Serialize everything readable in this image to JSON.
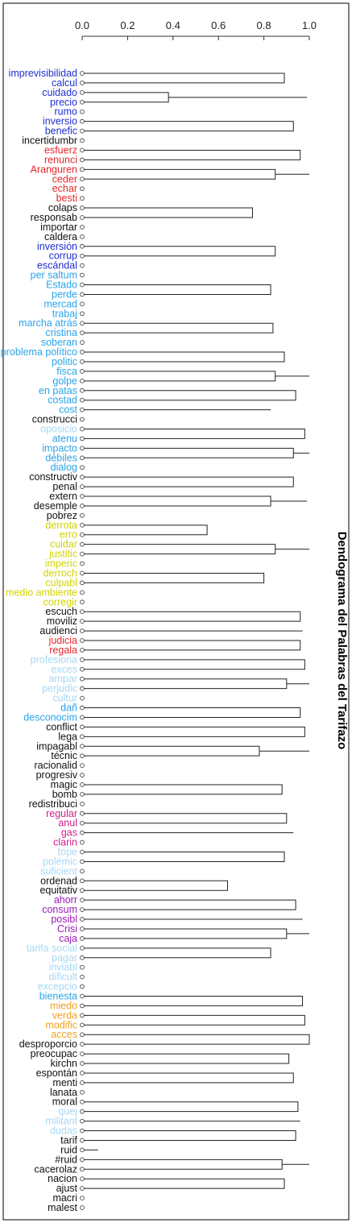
{
  "chart_data": {
    "type": "dendrogram",
    "title": "Dendograma del Palabras del Tarifazo",
    "xlim": [
      0,
      1
    ],
    "x_ticks": [
      "0.0",
      "0.2",
      "0.4",
      "0.6",
      "0.8",
      "1.0"
    ],
    "x_tick_values": [
      0,
      0.2,
      0.4,
      0.6,
      0.8,
      1.0
    ],
    "label_colors": {
      "blue": "#1f2fd0",
      "black": "#111111",
      "red": "#e8262a",
      "light_blue": "#2aa4e8",
      "pale_blue": "#a8d8f4",
      "yellow": "#d2d400",
      "magenta": "#d0208e",
      "purple": "#9a1ab8",
      "orange": "#f0a21e"
    },
    "leaves": [
      {
        "label": "imprevisibilidad",
        "color": "blue"
      },
      {
        "label": "calcul",
        "color": "blue"
      },
      {
        "label": "cuidado",
        "color": "blue"
      },
      {
        "label": "precio",
        "color": "blue"
      },
      {
        "label": "rumo",
        "color": "blue"
      },
      {
        "label": "inversio",
        "color": "blue"
      },
      {
        "label": "benefic",
        "color": "blue"
      },
      {
        "label": "incertidumbr",
        "color": "black"
      },
      {
        "label": "esfuerz",
        "color": "red"
      },
      {
        "label": "renunci",
        "color": "red"
      },
      {
        "label": "Aranguren",
        "color": "red"
      },
      {
        "label": "ceder",
        "color": "red"
      },
      {
        "label": "echar",
        "color": "red"
      },
      {
        "label": "besti",
        "color": "red"
      },
      {
        "label": "colaps",
        "color": "black"
      },
      {
        "label": "responsab",
        "color": "black"
      },
      {
        "label": "importar",
        "color": "black"
      },
      {
        "label": "caldera",
        "color": "black"
      },
      {
        "label": "inversión",
        "color": "blue"
      },
      {
        "label": "corrup",
        "color": "blue"
      },
      {
        "label": "escándal",
        "color": "blue"
      },
      {
        "label": "per saltum",
        "color": "light_blue"
      },
      {
        "label": "Estado",
        "color": "light_blue"
      },
      {
        "label": "perde",
        "color": "light_blue"
      },
      {
        "label": "mercad",
        "color": "light_blue"
      },
      {
        "label": "trabaj",
        "color": "light_blue"
      },
      {
        "label": "marcha atrás",
        "color": "light_blue"
      },
      {
        "label": "cristina",
        "color": "light_blue"
      },
      {
        "label": "soberan",
        "color": "light_blue"
      },
      {
        "label": "problema político",
        "color": "light_blue"
      },
      {
        "label": "politic",
        "color": "light_blue"
      },
      {
        "label": "fisca",
        "color": "light_blue"
      },
      {
        "label": "golpe",
        "color": "light_blue"
      },
      {
        "label": "en patas",
        "color": "light_blue"
      },
      {
        "label": "costad",
        "color": "light_blue"
      },
      {
        "label": "cost",
        "color": "light_blue"
      },
      {
        "label": "construcci",
        "color": "black"
      },
      {
        "label": "oposicio",
        "color": "pale_blue"
      },
      {
        "label": "atenu",
        "color": "light_blue"
      },
      {
        "label": "impacto",
        "color": "light_blue"
      },
      {
        "label": "débiles",
        "color": "light_blue"
      },
      {
        "label": "dialog",
        "color": "light_blue"
      },
      {
        "label": "constructiv",
        "color": "black"
      },
      {
        "label": "penal",
        "color": "black"
      },
      {
        "label": "extern",
        "color": "black"
      },
      {
        "label": "desemple",
        "color": "black"
      },
      {
        "label": "pobrez",
        "color": "black"
      },
      {
        "label": "derrota",
        "color": "yellow"
      },
      {
        "label": "erro",
        "color": "yellow"
      },
      {
        "label": "cuidar",
        "color": "yellow"
      },
      {
        "label": "justitic",
        "color": "yellow"
      },
      {
        "label": "imperic",
        "color": "yellow"
      },
      {
        "label": "derroch",
        "color": "yellow"
      },
      {
        "label": "culpabl",
        "color": "yellow"
      },
      {
        "label": "medio ambiente",
        "color": "yellow"
      },
      {
        "label": "corregir",
        "color": "yellow"
      },
      {
        "label": "escuch",
        "color": "black"
      },
      {
        "label": "moviliz",
        "color": "black"
      },
      {
        "label": "audienci",
        "color": "black"
      },
      {
        "label": "judicia",
        "color": "red"
      },
      {
        "label": "regala",
        "color": "red"
      },
      {
        "label": "profesiona",
        "color": "pale_blue"
      },
      {
        "label": "exces",
        "color": "pale_blue"
      },
      {
        "label": "ampar",
        "color": "pale_blue"
      },
      {
        "label": "perjudic",
        "color": "pale_blue"
      },
      {
        "label": "cultur",
        "color": "pale_blue"
      },
      {
        "label": "dañ",
        "color": "light_blue"
      },
      {
        "label": "desconocim",
        "color": "light_blue"
      },
      {
        "label": "conflict",
        "color": "black"
      },
      {
        "label": "lega",
        "color": "black"
      },
      {
        "label": "impagabl",
        "color": "black"
      },
      {
        "label": "técnic",
        "color": "black"
      },
      {
        "label": "racionalid",
        "color": "black"
      },
      {
        "label": "progresiv",
        "color": "black"
      },
      {
        "label": "magic",
        "color": "black"
      },
      {
        "label": "bomb",
        "color": "black"
      },
      {
        "label": "redistribuci",
        "color": "black"
      },
      {
        "label": "regular",
        "color": "magenta"
      },
      {
        "label": "anul",
        "color": "magenta"
      },
      {
        "label": "gas",
        "color": "magenta"
      },
      {
        "label": "clarin",
        "color": "magenta"
      },
      {
        "label": "tope",
        "color": "pale_blue"
      },
      {
        "label": "polémic",
        "color": "pale_blue"
      },
      {
        "label": "suficient",
        "color": "pale_blue"
      },
      {
        "label": "ordenad",
        "color": "black"
      },
      {
        "label": "equitativ",
        "color": "black"
      },
      {
        "label": "ahorr",
        "color": "purple"
      },
      {
        "label": "consum",
        "color": "purple"
      },
      {
        "label": "posibl",
        "color": "purple"
      },
      {
        "label": "Crisi",
        "color": "purple"
      },
      {
        "label": "caja",
        "color": "purple"
      },
      {
        "label": "tarifa social",
        "color": "pale_blue"
      },
      {
        "label": "pagar",
        "color": "pale_blue"
      },
      {
        "label": "inviabl",
        "color": "pale_blue"
      },
      {
        "label": "dificult",
        "color": "pale_blue"
      },
      {
        "label": "excepcio",
        "color": "pale_blue"
      },
      {
        "label": "bienesta",
        "color": "light_blue"
      },
      {
        "label": "miedo",
        "color": "orange"
      },
      {
        "label": "verda",
        "color": "orange"
      },
      {
        "label": "modific",
        "color": "orange"
      },
      {
        "label": "acces",
        "color": "orange"
      },
      {
        "label": "desproporcio",
        "color": "black"
      },
      {
        "label": "preocupac",
        "color": "black"
      },
      {
        "label": "kirchn",
        "color": "black"
      },
      {
        "label": "espontán",
        "color": "black"
      },
      {
        "label": "menti",
        "color": "black"
      },
      {
        "label": "lanata",
        "color": "black"
      },
      {
        "label": "moral",
        "color": "black"
      },
      {
        "label": "quej",
        "color": "pale_blue"
      },
      {
        "label": "militant",
        "color": "pale_blue"
      },
      {
        "label": "dudas",
        "color": "pale_blue"
      },
      {
        "label": "tarif",
        "color": "black"
      },
      {
        "label": "ruid",
        "color": "black"
      },
      {
        "label": "#ruid",
        "color": "black"
      },
      {
        "label": "cacerolaz",
        "color": "black"
      },
      {
        "label": "nacion",
        "color": "black"
      },
      {
        "label": "ajust",
        "color": "black"
      },
      {
        "label": "macri",
        "color": "black"
      },
      {
        "label": "malest",
        "color": "black"
      }
    ],
    "merges": [
      [
        0,
        1,
        0.89
      ],
      [
        2,
        3,
        0.38
      ],
      [
        121,
        4,
        0.99
      ],
      [
        120,
        122,
        0.99
      ],
      [
        123,
        124,
        1.0
      ],
      [
        5,
        6,
        0.93
      ],
      [
        126,
        7,
        0.99
      ],
      [
        125,
        127,
        1.0
      ],
      [
        8,
        9,
        0.96
      ],
      [
        10,
        11,
        0.85
      ],
      [
        130,
        12,
        0.97
      ],
      [
        129,
        131,
        0.98
      ],
      [
        132,
        13,
        0.99
      ],
      [
        14,
        15,
        0.75
      ],
      [
        134,
        16,
        0.94
      ],
      [
        135,
        17,
        0.99
      ],
      [
        133,
        136,
        1.0
      ],
      [
        128,
        137,
        1.0
      ],
      [
        18,
        19,
        0.85
      ],
      [
        139,
        20,
        0.93
      ],
      [
        140,
        21,
        1.0
      ],
      [
        22,
        23,
        0.83
      ],
      [
        142,
        24,
        0.94
      ],
      [
        143,
        25,
        0.98
      ],
      [
        26,
        27,
        0.84
      ],
      [
        145,
        28,
        0.99
      ],
      [
        144,
        146,
        1.0
      ],
      [
        29,
        30,
        0.89
      ],
      [
        31,
        32,
        0.85
      ],
      [
        148,
        149,
        0.96
      ],
      [
        33,
        34,
        0.94
      ],
      [
        35,
        151,
        0.83
      ],
      [
        150,
        152,
        0.98
      ],
      [
        153,
        36,
        1.0
      ],
      [
        147,
        154,
        1.0
      ],
      [
        141,
        155,
        1.0
      ],
      [
        138,
        156,
        1.0
      ],
      [
        37,
        38,
        0.98
      ],
      [
        39,
        40,
        0.93
      ],
      [
        158,
        159,
        0.98
      ],
      [
        160,
        41,
        0.99
      ],
      [
        42,
        43,
        0.93
      ],
      [
        44,
        45,
        0.83
      ],
      [
        163,
        46,
        0.92
      ],
      [
        162,
        164,
        0.97
      ],
      [
        161,
        165,
        0.99
      ],
      [
        47,
        48,
        0.55
      ],
      [
        49,
        50,
        0.85
      ],
      [
        168,
        51,
        0.68
      ],
      [
        167,
        169,
        0.92
      ],
      [
        52,
        53,
        0.8
      ],
      [
        170,
        171,
        0.95
      ],
      [
        172,
        54,
        0.98
      ],
      [
        173,
        55,
        1.0
      ],
      [
        166,
        174,
        1.0
      ],
      [
        157,
        175,
        1.0
      ],
      [
        56,
        57,
        0.96
      ],
      [
        58,
        177,
        0.97
      ],
      [
        59,
        60,
        0.96
      ],
      [
        178,
        179,
        0.98
      ],
      [
        61,
        62,
        0.98
      ],
      [
        63,
        64,
        0.9
      ],
      [
        181,
        182,
        0.98
      ],
      [
        183,
        65,
        0.99
      ],
      [
        180,
        184,
        1.0
      ],
      [
        66,
        67,
        0.96
      ],
      [
        185,
        186,
        1.0
      ],
      [
        68,
        69,
        0.98
      ],
      [
        70,
        71,
        0.78
      ],
      [
        188,
        189,
        0.93
      ],
      [
        190,
        72,
        0.98
      ],
      [
        191,
        73,
        1.0
      ],
      [
        187,
        192,
        1.0
      ],
      [
        74,
        75,
        0.88
      ],
      [
        193,
        194,
        1.0
      ],
      [
        195,
        76,
        1.0
      ],
      [
        77,
        78,
        0.9
      ],
      [
        79,
        198,
        0.93
      ],
      [
        199,
        80,
        0.98
      ],
      [
        81,
        82,
        0.89
      ],
      [
        200,
        201,
        1.0
      ],
      [
        202,
        83,
        1.0
      ],
      [
        84,
        85,
        0.64
      ],
      [
        203,
        204,
        1.0
      ],
      [
        196,
        205,
        1.0
      ],
      [
        176,
        206,
        1.0
      ],
      [
        86,
        87,
        0.94
      ],
      [
        88,
        208,
        0.97
      ],
      [
        89,
        90,
        0.9
      ],
      [
        209,
        210,
        0.98
      ],
      [
        91,
        92,
        0.83
      ],
      [
        212,
        93,
        0.95
      ],
      [
        213,
        94,
        0.97
      ],
      [
        214,
        95,
        0.98
      ],
      [
        211,
        215,
        0.99
      ],
      [
        96,
        97,
        0.97
      ],
      [
        98,
        99,
        0.98
      ],
      [
        217,
        218,
        0.99
      ],
      [
        216,
        219,
        1.0
      ],
      [
        100,
        101,
        1.0
      ],
      [
        220,
        221,
        1.0
      ],
      [
        102,
        103,
        0.91
      ],
      [
        104,
        105,
        0.93
      ],
      [
        223,
        224,
        0.97
      ],
      [
        225,
        106,
        0.98
      ],
      [
        107,
        108,
        0.95
      ],
      [
        109,
        227,
        0.96
      ],
      [
        226,
        228,
        0.99
      ],
      [
        222,
        229,
        1.0
      ],
      [
        110,
        111,
        0.94
      ],
      [
        112,
        231,
        0.07
      ],
      [
        113,
        114,
        0.88
      ],
      [
        232,
        233,
        0.95
      ],
      [
        115,
        116,
        0.89
      ],
      [
        235,
        117,
        0.89
      ],
      [
        234,
        236,
        0.97
      ],
      [
        230,
        237,
        1.0
      ],
      [
        207,
        238,
        1.0
      ]
    ]
  }
}
